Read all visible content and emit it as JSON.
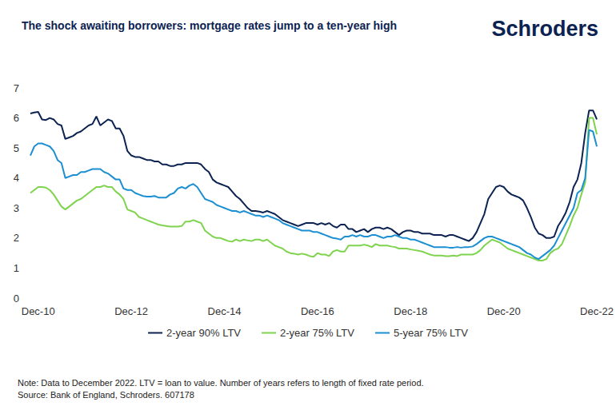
{
  "chart_data": {
    "type": "line",
    "title": "The shock awaiting borrowers: mortgage rates jump to a ten-year high",
    "logo": "Schroders",
    "note": "Note: Data to December 2022. LTV = loan to value. Number of years refers to length of fixed rate period.",
    "source": "Source: Bank of England, Schroders. 607178",
    "categories": [
      null,
      null,
      "Dec-10",
      null,
      null,
      null,
      null,
      null,
      null,
      null,
      null,
      null,
      null,
      null,
      null,
      null,
      null,
      null,
      null,
      null,
      null,
      null,
      null,
      null,
      null,
      null,
      "Dec-12",
      null,
      null,
      null,
      null,
      null,
      null,
      null,
      null,
      null,
      null,
      null,
      null,
      null,
      null,
      null,
      null,
      null,
      null,
      null,
      null,
      null,
      null,
      null,
      "Dec-14",
      null,
      null,
      null,
      null,
      null,
      null,
      null,
      null,
      null,
      null,
      null,
      null,
      null,
      null,
      null,
      null,
      null,
      null,
      null,
      null,
      null,
      null,
      null,
      "Dec-16",
      null,
      null,
      null,
      null,
      null,
      null,
      null,
      null,
      null,
      null,
      null,
      null,
      null,
      null,
      null,
      null,
      null,
      null,
      null,
      null,
      null,
      null,
      null,
      "Dec-18",
      null,
      null,
      null,
      null,
      null,
      null,
      null,
      null,
      null,
      null,
      null,
      null,
      null,
      null,
      null,
      null,
      null,
      null,
      null,
      null,
      null,
      null,
      null,
      "Dec-20",
      null,
      null,
      null,
      null,
      null,
      null,
      null,
      null,
      null,
      null,
      null,
      null,
      null,
      null,
      null,
      null,
      null,
      null,
      null,
      null,
      null,
      null,
      null,
      "Dec-22"
    ],
    "series": [
      {
        "name": "2-year 90% LTV",
        "color": "#0c2352",
        "values": [
          6.15,
          6.18,
          6.2,
          5.95,
          5.93,
          6.0,
          5.95,
          5.8,
          5.75,
          5.3,
          5.35,
          5.4,
          5.5,
          5.55,
          5.65,
          5.75,
          5.8,
          6.05,
          5.75,
          5.85,
          5.95,
          5.9,
          5.65,
          5.65,
          5.4,
          4.9,
          4.75,
          4.7,
          4.7,
          4.65,
          4.6,
          4.6,
          4.55,
          4.55,
          4.45,
          4.45,
          4.4,
          4.4,
          4.45,
          4.45,
          4.5,
          4.5,
          4.5,
          4.5,
          4.45,
          4.3,
          4.2,
          3.95,
          3.85,
          3.8,
          3.75,
          3.7,
          3.55,
          3.4,
          3.3,
          3.15,
          3.0,
          2.9,
          2.9,
          2.88,
          2.85,
          2.9,
          2.85,
          2.8,
          2.7,
          2.6,
          2.55,
          2.5,
          2.45,
          2.4,
          2.45,
          2.5,
          2.5,
          2.5,
          2.45,
          2.5,
          2.45,
          2.5,
          2.4,
          2.35,
          2.45,
          2.45,
          2.3,
          2.3,
          2.2,
          2.25,
          2.3,
          2.2,
          2.3,
          2.35,
          2.35,
          2.3,
          2.35,
          2.3,
          2.2,
          2.1,
          2.2,
          2.25,
          2.25,
          2.2,
          2.2,
          2.15,
          2.15,
          2.15,
          2.1,
          2.1,
          2.1,
          2.05,
          2.1,
          2.1,
          2.05,
          2.0,
          1.95,
          1.9,
          2.0,
          2.2,
          2.5,
          2.8,
          3.3,
          3.5,
          3.7,
          3.75,
          3.7,
          3.55,
          3.45,
          3.4,
          3.35,
          3.25,
          3.0,
          2.7,
          2.35,
          2.15,
          2.1,
          2.0,
          2.0,
          2.05,
          2.4,
          2.6,
          2.85,
          3.2,
          3.7,
          3.95,
          4.5,
          5.5,
          6.25,
          6.25,
          5.95
        ]
      },
      {
        "name": "2-year 75% LTV",
        "color": "#7fd34e",
        "values": [
          3.5,
          3.6,
          3.7,
          3.7,
          3.68,
          3.6,
          3.45,
          3.25,
          3.05,
          2.95,
          3.05,
          3.15,
          3.25,
          3.3,
          3.4,
          3.5,
          3.6,
          3.7,
          3.7,
          3.75,
          3.7,
          3.7,
          3.55,
          3.45,
          3.3,
          2.95,
          2.9,
          2.85,
          2.7,
          2.65,
          2.6,
          2.55,
          2.5,
          2.45,
          2.42,
          2.4,
          2.38,
          2.38,
          2.38,
          2.4,
          2.55,
          2.55,
          2.6,
          2.55,
          2.5,
          2.25,
          2.15,
          2.05,
          2.0,
          2.0,
          1.95,
          1.9,
          1.88,
          1.95,
          1.9,
          1.95,
          1.92,
          1.9,
          1.95,
          1.95,
          1.9,
          1.95,
          1.85,
          1.75,
          1.7,
          1.65,
          1.55,
          1.5,
          1.48,
          1.45,
          1.48,
          1.45,
          1.4,
          1.38,
          1.5,
          1.45,
          1.45,
          1.4,
          1.55,
          1.6,
          1.55,
          1.55,
          1.75,
          1.75,
          1.75,
          1.75,
          1.78,
          1.75,
          1.7,
          1.8,
          1.75,
          1.75,
          1.75,
          1.72,
          1.7,
          1.65,
          1.65,
          1.65,
          1.62,
          1.6,
          1.58,
          1.55,
          1.5,
          1.45,
          1.42,
          1.42,
          1.42,
          1.4,
          1.4,
          1.42,
          1.4,
          1.45,
          1.45,
          1.45,
          1.45,
          1.5,
          1.6,
          1.75,
          1.85,
          1.95,
          1.9,
          1.85,
          1.75,
          1.65,
          1.6,
          1.55,
          1.5,
          1.45,
          1.4,
          1.35,
          1.3,
          1.25,
          1.25,
          1.3,
          1.5,
          1.6,
          1.65,
          1.8,
          2.1,
          2.4,
          2.75,
          3.0,
          3.45,
          3.85,
          6.0,
          6.0,
          5.45
        ]
      },
      {
        "name": "5-year 75% LTV",
        "color": "#1b8fd2",
        "values": [
          4.75,
          5.05,
          5.15,
          5.15,
          5.1,
          5.05,
          4.9,
          4.6,
          4.5,
          4.0,
          4.05,
          4.1,
          4.1,
          4.2,
          4.2,
          4.25,
          4.3,
          4.3,
          4.3,
          4.2,
          4.15,
          4.05,
          3.95,
          3.95,
          3.65,
          3.6,
          3.6,
          3.5,
          3.45,
          3.4,
          3.38,
          3.38,
          3.4,
          3.35,
          3.35,
          3.35,
          3.45,
          3.5,
          3.65,
          3.7,
          3.65,
          3.75,
          3.8,
          3.7,
          3.5,
          3.3,
          3.25,
          3.2,
          3.1,
          3.05,
          3.0,
          2.95,
          2.9,
          2.9,
          2.85,
          2.9,
          2.85,
          2.8,
          2.75,
          2.75,
          2.7,
          2.75,
          2.7,
          2.65,
          2.6,
          2.5,
          2.45,
          2.4,
          2.35,
          2.3,
          2.25,
          2.25,
          2.25,
          2.2,
          2.2,
          2.15,
          2.1,
          2.05,
          2.0,
          1.98,
          1.95,
          2.05,
          2.05,
          2.1,
          2.05,
          2.1,
          2.05,
          2.05,
          2.1,
          2.1,
          2.05,
          2.0,
          2.05,
          2.05,
          2.1,
          2.05,
          2.0,
          2.0,
          1.95,
          1.95,
          1.9,
          1.85,
          1.8,
          1.75,
          1.7,
          1.7,
          1.7,
          1.7,
          1.68,
          1.68,
          1.7,
          1.68,
          1.7,
          1.7,
          1.72,
          1.8,
          1.9,
          2.0,
          2.05,
          2.05,
          2.0,
          1.95,
          1.9,
          1.85,
          1.8,
          1.75,
          1.7,
          1.6,
          1.5,
          1.45,
          1.35,
          1.3,
          1.4,
          1.5,
          1.6,
          1.75,
          2.0,
          2.25,
          2.5,
          2.75,
          3.0,
          3.5,
          3.6,
          4.0,
          5.6,
          5.55,
          5.05
        ]
      }
    ],
    "ylim": [
      0,
      7
    ],
    "yticks": [
      0,
      1,
      2,
      3,
      4,
      5,
      6,
      7
    ],
    "grid": false,
    "legend": "bottom"
  }
}
